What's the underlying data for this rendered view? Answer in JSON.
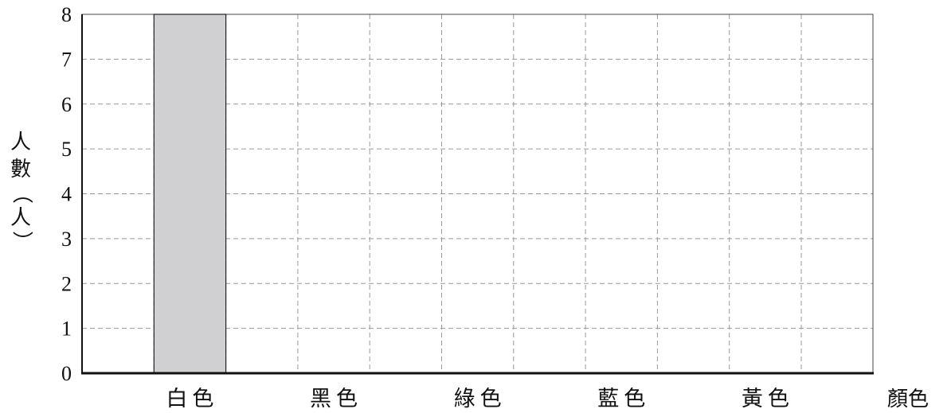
{
  "chart_data": {
    "type": "bar",
    "xlabel": "顏色",
    "ylabel": "人數（人）",
    "ylabel_chars": [
      "人",
      "數",
      "（",
      "人",
      "）"
    ],
    "categories": [
      "白色",
      "黑色",
      "綠色",
      "藍色",
      "黃色"
    ],
    "values": [
      8,
      null,
      null,
      null,
      null
    ],
    "yticks": [
      "0",
      "1",
      "2",
      "3",
      "4",
      "5",
      "6",
      "7",
      "8"
    ],
    "ylim": [
      0,
      8
    ],
    "grid": true,
    "grid_style": "dashed",
    "bar_color": "#d0d0d3",
    "legend": "none"
  }
}
